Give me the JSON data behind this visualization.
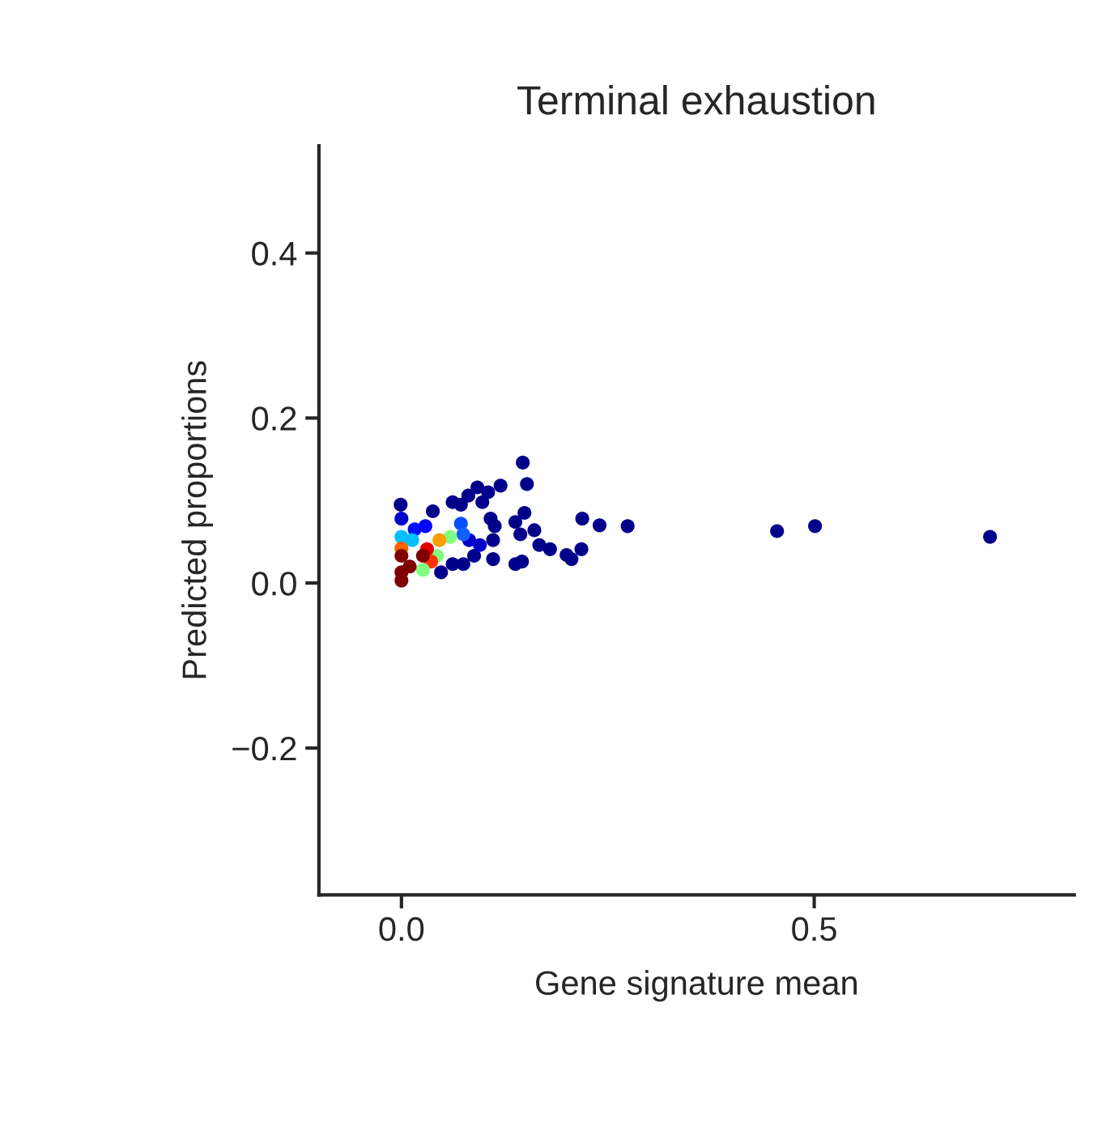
{
  "chart_data": {
    "type": "scatter",
    "title": "Terminal exhaustion",
    "xlabel": "Gene signature mean",
    "ylabel": "Predicted proportions",
    "xlim": [
      -0.1,
      0.815
    ],
    "ylim": [
      -0.378,
      0.53
    ],
    "xticks": [
      {
        "value": 0.0,
        "label": "0.0"
      },
      0.5
    ],
    "yticks": [
      {
        "value": -0.2,
        "label": "−0.2"
      },
      {
        "value": 0.0,
        "label": "0.0"
      },
      0.2,
      0.4
    ],
    "grid": false,
    "legend": false,
    "marker": "circle",
    "series": [
      {
        "x": [
          0.713,
          0.501,
          0.455,
          0.274,
          0.24,
          0.219,
          0.147,
          0.152,
          0.12,
          0.149,
          0.138,
          0.144,
          0.161,
          0.167,
          0.18,
          0.2,
          0.206,
          0.218,
          0.138,
          0.146,
          0.113,
          0.108,
          0.111,
          0.111,
          0.105,
          0.092,
          0.081,
          0.098,
          0.062,
          0.072,
          0.038,
          -0.001,
          0.0,
          0.048,
          0.062,
          0.075,
          0.088,
          0.095,
          0.082,
          0.029,
          0.016,
          0.0,
          0.013,
          0.072,
          0.075,
          0.059,
          0.046,
          0.043,
          0.031,
          0.0,
          0.036,
          0.026,
          0.0,
          0.0,
          0.01,
          0.026,
          0.0
        ],
        "values": [
          0.056,
          0.069,
          0.063,
          0.069,
          0.07,
          0.078,
          0.146,
          0.12,
          0.118,
          0.085,
          0.074,
          0.059,
          0.064,
          0.046,
          0.041,
          0.034,
          0.029,
          0.041,
          0.023,
          0.026,
          0.069,
          0.078,
          0.052,
          0.029,
          0.11,
          0.116,
          0.106,
          0.098,
          0.098,
          0.095,
          0.087,
          0.095,
          0.078,
          0.013,
          0.023,
          0.023,
          0.033,
          0.046,
          0.052,
          0.069,
          0.065,
          0.056,
          0.052,
          0.072,
          0.059,
          0.056,
          0.052,
          0.033,
          0.041,
          0.042,
          0.026,
          0.016,
          0.013,
          0.003,
          0.02,
          0.033,
          0.033
        ],
        "colors": [
          "#00008b",
          "#00008b",
          "#00008b",
          "#00008b",
          "#00008b",
          "#00008b",
          "#00008b",
          "#00008b",
          "#00008b",
          "#00008b",
          "#00008b",
          "#00008b",
          "#00008b",
          "#00008b",
          "#00008b",
          "#00008b",
          "#00008b",
          "#00008b",
          "#00008b",
          "#00008b",
          "#00008b",
          "#00008b",
          "#00008b",
          "#00008b",
          "#00008b",
          "#00008b",
          "#00008b",
          "#00008b",
          "#00008b",
          "#00008b",
          "#00008b",
          "#00008b",
          "#0000cd",
          "#00008b",
          "#00008b",
          "#00008b",
          "#00008b",
          "#0000cd",
          "#0000cd",
          "#0000ff",
          "#0010ff",
          "#00c0ff",
          "#00c0ff",
          "#0050ff",
          "#1060ff",
          "#80ff80",
          "#ffa000",
          "#80ff80",
          "#e00000",
          "#ff6000",
          "#ff3000",
          "#80ff80",
          "#800000",
          "#800000",
          "#800000",
          "#800000",
          "#800000"
        ]
      }
    ]
  }
}
